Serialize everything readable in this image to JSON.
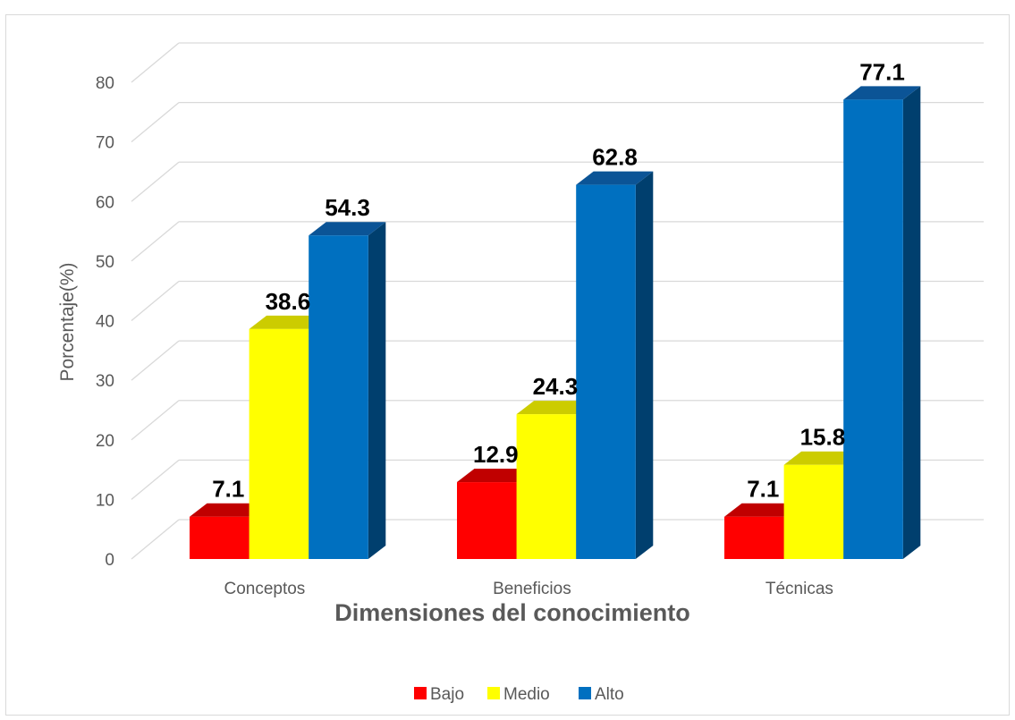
{
  "chart_data": {
    "type": "bar",
    "title": "",
    "xlabel": "Dimensiones del conocimiento",
    "ylabel": "Porcentaje(%)",
    "categories": [
      "Conceptos",
      "Beneficios",
      "Técnicas"
    ],
    "ylim": [
      0,
      80
    ],
    "yticks": [
      "0",
      "10",
      "20",
      "30",
      "40",
      "50",
      "60",
      "70",
      "80"
    ],
    "grid": true,
    "three_d": true,
    "legend_position": "bottom",
    "series": [
      {
        "name": "Bajo",
        "values": [
          7.1,
          12.9,
          7.1
        ],
        "labels": [
          "7.1",
          "12.9",
          "7.1"
        ],
        "color": "#FF0000",
        "top_color": "#C00000",
        "side_color": "#A00000"
      },
      {
        "name": "Medio",
        "values": [
          38.6,
          24.3,
          15.8
        ],
        "labels": [
          "38.6",
          "24.3",
          "15.8"
        ],
        "color": "#FFFF00",
        "top_color": "#CCCC00",
        "side_color": "#B3B300"
      },
      {
        "name": "Alto",
        "values": [
          54.3,
          62.8,
          77.1
        ],
        "labels": [
          "54.3",
          "62.8",
          "77.1"
        ],
        "color": "#0070C0",
        "top_color": "#0B5496",
        "side_color": "#003F6E"
      }
    ]
  }
}
